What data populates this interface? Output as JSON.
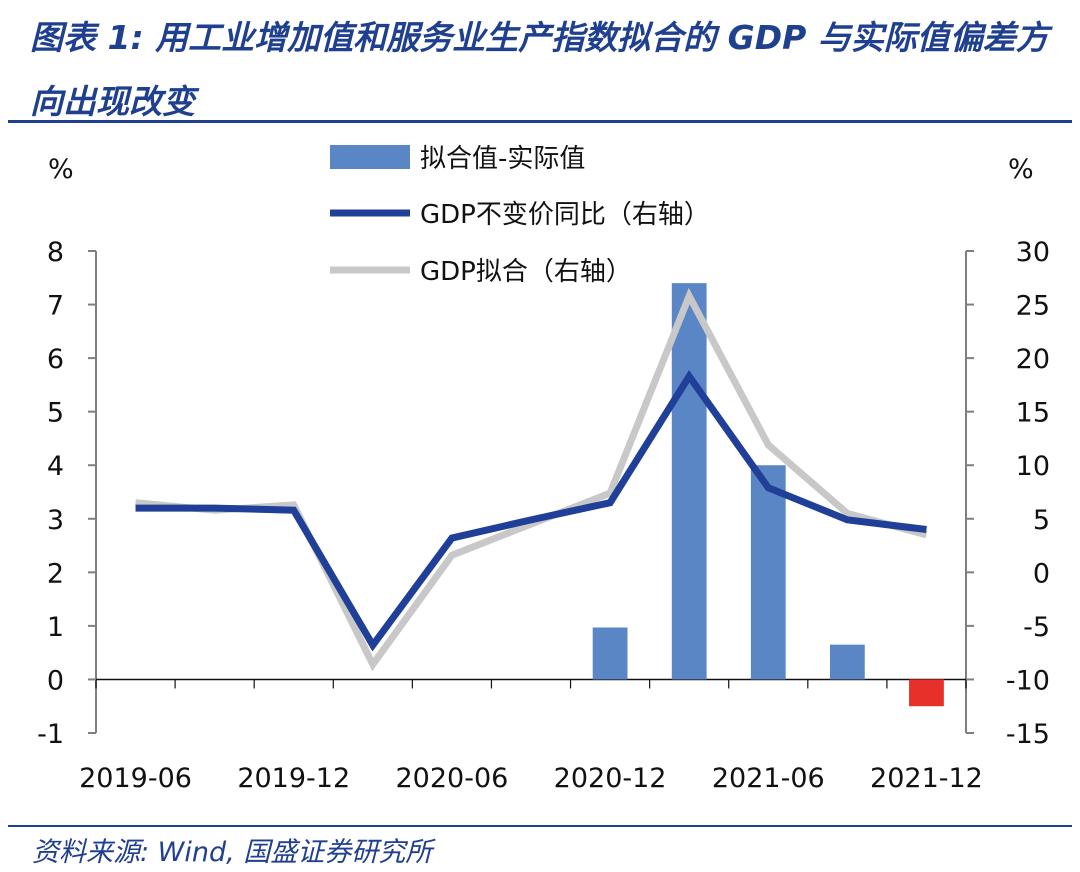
{
  "title": "图表 1:  用工业增加值和服务业生产指数拟合的 GDP 与实际值偏差方向出现改变",
  "source": "资料来源:  Wind, 国盛证券研究所",
  "colors": {
    "bar_positive": "#5b86c5",
    "bar_negative": "#e8302a",
    "gdp_actual": "#1f3f98",
    "gdp_fit": "#c8c8c8",
    "title": "#1f3f8f"
  },
  "chart_data": {
    "type": "bar+line",
    "left_axis": {
      "unit": "%",
      "ylim": [
        -1,
        8
      ],
      "ticks": [
        "-1",
        "0",
        "1",
        "2",
        "3",
        "4",
        "5",
        "6",
        "7",
        "8"
      ]
    },
    "right_axis": {
      "unit": "%",
      "ylim": [
        -15,
        30
      ],
      "ticks": [
        "-15",
        "-10",
        "-5",
        "0",
        "5",
        "10",
        "15",
        "20",
        "25",
        "30"
      ]
    },
    "x_tick_labels": [
      "2019-06",
      "2019-12",
      "2020-06",
      "2020-12",
      "2021-06",
      "2021-12"
    ],
    "x": [
      "2019-06",
      "2019-09",
      "2019-12",
      "2020-03",
      "2020-06",
      "2020-09",
      "2020-12",
      "2021-03",
      "2021-06",
      "2021-09",
      "2021-12"
    ],
    "series": [
      {
        "name": "拟合值-实际值",
        "kind": "bar",
        "axis": "left",
        "values": [
          null,
          null,
          null,
          null,
          null,
          null,
          0.97,
          7.4,
          4.0,
          0.65,
          -0.5
        ]
      },
      {
        "name": "GDP不变价同比（右轴）",
        "kind": "line",
        "axis": "right",
        "values": [
          6.0,
          6.0,
          5.8,
          -6.8,
          3.2,
          4.9,
          6.5,
          18.3,
          7.9,
          4.9,
          4.0
        ]
      },
      {
        "name": "GDP拟合（右轴）",
        "kind": "line",
        "axis": "right",
        "values": [
          6.5,
          5.8,
          6.3,
          -8.6,
          1.6,
          4.5,
          7.4,
          25.8,
          11.9,
          5.5,
          3.5
        ]
      }
    ],
    "legend_position": "top-center"
  }
}
